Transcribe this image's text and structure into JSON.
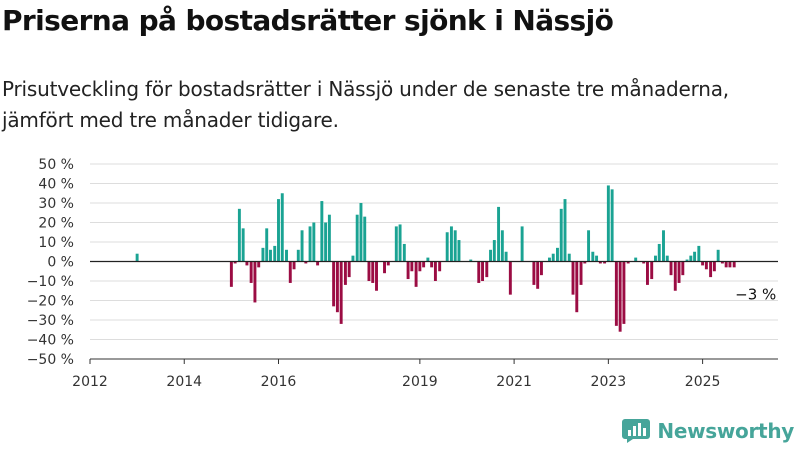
{
  "title": "Priserna på bostadsrätter sjönk i Nässjö",
  "subtitle": "Prisutveckling för bostadsrätter i Nässjö under de senaste tre månaderna, jämfört med tre månader tidigare.",
  "brand": "Newsworthy",
  "colors": {
    "positive": "#1aa393",
    "negative": "#9b0c43",
    "grid": "#dddddd",
    "axis": "#333333",
    "brand": "#46a59a"
  },
  "chart_data": {
    "type": "bar",
    "x_axis_type": "year",
    "xlim": [
      2012,
      2026.6
    ],
    "ylim": [
      -50,
      50
    ],
    "y_ticks": [
      50,
      40,
      30,
      20,
      10,
      0,
      -10,
      -20,
      -30,
      -40,
      -50
    ],
    "y_tick_labels": [
      "50 %",
      "40 %",
      "30 %",
      "20 %",
      "10 %",
      "0 %",
      "−10 %",
      "−20 %",
      "−30 %",
      "−40 %",
      "−50 %"
    ],
    "x_ticks": [
      2012,
      2014,
      2016,
      2019,
      2021,
      2023,
      2025
    ],
    "x_tick_labels": [
      "2012",
      "2014",
      "2016",
      "2019",
      "2021",
      "2023",
      "2025"
    ],
    "grid": true,
    "annotation": {
      "text": "−3 %",
      "x": 2025.67,
      "y": -3
    },
    "series": [
      {
        "x": [
          2013.0,
          2015.0,
          2015.08,
          2015.17,
          2015.25,
          2015.33,
          2015.42,
          2015.5,
          2015.58,
          2015.67,
          2015.75,
          2015.83,
          2015.92,
          2016.0,
          2016.08,
          2016.17,
          2016.25,
          2016.33,
          2016.42,
          2016.5,
          2016.58,
          2016.67,
          2016.75,
          2016.83,
          2016.92,
          2017.0,
          2017.08,
          2017.17,
          2017.25,
          2017.33,
          2017.42,
          2017.5,
          2017.58,
          2017.67,
          2017.75,
          2017.83,
          2017.92,
          2018.0,
          2018.08,
          2018.17,
          2018.25,
          2018.33,
          2018.42,
          2018.5,
          2018.58,
          2018.67,
          2018.75,
          2018.83,
          2018.92,
          2019.0,
          2019.08,
          2019.17,
          2019.25,
          2019.33,
          2019.42,
          2019.5,
          2019.58,
          2019.67,
          2019.75,
          2019.83,
          2019.92,
          2020.0,
          2020.08,
          2020.17,
          2020.25,
          2020.33,
          2020.42,
          2020.5,
          2020.58,
          2020.67,
          2020.75,
          2020.83,
          2020.92,
          2021.0,
          2021.08,
          2021.17,
          2021.25,
          2021.33,
          2021.42,
          2021.5,
          2021.58,
          2021.67,
          2021.75,
          2021.83,
          2021.92,
          2022.0,
          2022.08,
          2022.17,
          2022.25,
          2022.33,
          2022.42,
          2022.5,
          2022.58,
          2022.67,
          2022.75,
          2022.83,
          2022.92,
          2023.0,
          2023.08,
          2023.17,
          2023.25,
          2023.33,
          2023.42,
          2023.5,
          2023.58,
          2023.67,
          2023.75,
          2023.83,
          2023.92,
          2024.0,
          2024.08,
          2024.17,
          2024.25,
          2024.33,
          2024.42,
          2024.5,
          2024.58,
          2024.67,
          2024.75,
          2024.83,
          2024.92,
          2025.0,
          2025.08,
          2025.17,
          2025.25,
          2025.33,
          2025.42,
          2025.5,
          2025.58,
          2025.67
        ],
        "values": [
          4,
          -13,
          -1,
          27,
          17,
          -2,
          -11,
          -21,
          -3,
          7,
          17,
          6,
          8,
          32,
          35,
          6,
          -11,
          -4,
          6,
          16,
          -1,
          18,
          20,
          -2,
          31,
          20,
          24,
          -23,
          -26,
          -32,
          -12,
          -8,
          3,
          24,
          30,
          23,
          -10,
          -11,
          -15,
          0,
          -6,
          -2,
          0,
          18,
          19,
          9,
          -9,
          -5,
          -13,
          -5,
          -3,
          2,
          -3,
          -10,
          -5,
          0,
          15,
          18,
          16,
          11,
          0,
          0,
          1,
          0,
          -11,
          -10,
          -8,
          6,
          11,
          28,
          16,
          5,
          -17,
          0,
          0,
          18,
          0,
          0,
          -12,
          -14,
          -7,
          0,
          2,
          4,
          7,
          27,
          32,
          4,
          -17,
          -26,
          -12,
          -1,
          16,
          5,
          3,
          -1,
          -1,
          39,
          37,
          -33,
          -36,
          -32,
          -1,
          0,
          2,
          0,
          -1,
          -12,
          -9,
          3,
          9,
          16,
          3,
          -7,
          -15,
          -11,
          -7,
          1,
          3,
          5,
          8,
          -2,
          -4,
          -8,
          -5,
          6,
          -1,
          -3,
          -3,
          -3
        ]
      }
    ]
  }
}
